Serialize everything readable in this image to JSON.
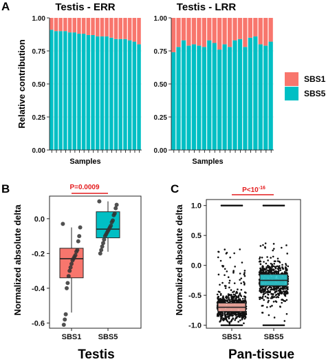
{
  "colors": {
    "sbs1": "#F8766D",
    "sbs5": "#00BFC4",
    "sig": "#E41A1C",
    "pt_sbs1": "#F4A9A0",
    "pt_sbs5": "#2FC4CC"
  },
  "panel_a": {
    "letter": "A",
    "legend": [
      "SBS1",
      "SBS5"
    ],
    "ylabel": "Relative contribution",
    "y_ticks": [
      "0.00",
      "0.25",
      "0.50",
      "0.75",
      "1.00"
    ]
  },
  "panel_b": {
    "letter": "B",
    "label": "Testis"
  },
  "panel_c": {
    "letter": "C",
    "label": "Pan-tissue"
  },
  "chart_data": [
    {
      "type": "bar",
      "stacked": true,
      "title": "Testis - ERR",
      "xlabel": "Samples",
      "ylabel": "Relative contribution",
      "ylim": [
        0,
        1
      ],
      "series": [
        {
          "name": "SBS5",
          "values": [
            0.91,
            0.9,
            0.9,
            0.9,
            0.89,
            0.89,
            0.88,
            0.88,
            0.87,
            0.87,
            0.86,
            0.86,
            0.86,
            0.85,
            0.84,
            0.84,
            0.84,
            0.83,
            0.82,
            0.8
          ]
        },
        {
          "name": "SBS1",
          "values": [
            0.09,
            0.1,
            0.1,
            0.1,
            0.11,
            0.11,
            0.12,
            0.12,
            0.13,
            0.13,
            0.14,
            0.14,
            0.14,
            0.15,
            0.16,
            0.16,
            0.16,
            0.17,
            0.18,
            0.2
          ]
        }
      ]
    },
    {
      "type": "bar",
      "stacked": true,
      "title": "Testis - LRR",
      "xlabel": "Samples",
      "ylim": [
        0,
        1
      ],
      "series": [
        {
          "name": "SBS5",
          "values": [
            0.74,
            0.78,
            0.83,
            0.79,
            0.8,
            0.79,
            0.78,
            0.83,
            0.81,
            0.76,
            0.8,
            0.78,
            0.83,
            0.84,
            0.78,
            0.85,
            0.86,
            0.8,
            0.79,
            0.82
          ]
        },
        {
          "name": "SBS1",
          "values": [
            0.26,
            0.22,
            0.17,
            0.21,
            0.2,
            0.21,
            0.22,
            0.17,
            0.19,
            0.24,
            0.2,
            0.22,
            0.17,
            0.16,
            0.22,
            0.15,
            0.14,
            0.2,
            0.21,
            0.18
          ]
        }
      ]
    },
    {
      "type": "box",
      "title": "",
      "xlabel": "Testis",
      "ylabel": "Normalized absolute delta",
      "ylim": [
        -0.63,
        0.13
      ],
      "y_ticks": [
        0.0,
        -0.2,
        -0.4,
        -0.6
      ],
      "y_tick_labels": [
        "0.0",
        "-0.2",
        "-0.4",
        "-0.6"
      ],
      "categories": [
        "SBS1",
        "SBS5"
      ],
      "significance": "P=0.0009",
      "boxes": [
        {
          "name": "SBS1",
          "whisker_low": -0.54,
          "q1": -0.34,
          "median": -0.23,
          "q3": -0.17,
          "whisker_high": -0.05,
          "points": [
            -0.03,
            -0.05,
            -0.1,
            -0.13,
            -0.18,
            -0.19,
            -0.21,
            -0.22,
            -0.23,
            -0.24,
            -0.26,
            -0.28,
            -0.3,
            -0.33,
            -0.37,
            -0.4,
            -0.55,
            -0.58,
            -0.61
          ]
        },
        {
          "name": "SBS5",
          "whisker_low": -0.19,
          "q1": -0.11,
          "median": -0.06,
          "q3": 0.04,
          "whisker_high": 0.1,
          "points": [
            0.1,
            0.08,
            0.06,
            0.03,
            0.02,
            -0.01,
            -0.02,
            -0.04,
            -0.05,
            -0.06,
            -0.07,
            -0.08,
            -0.09,
            -0.1,
            -0.12,
            -0.14,
            -0.16,
            -0.18,
            -0.2
          ]
        }
      ]
    },
    {
      "type": "box",
      "title": "",
      "xlabel": "Pan-tissue",
      "ylabel": "Normalized absolute delta",
      "ylim": [
        -1.05,
        1.1
      ],
      "y_ticks": [
        1.0,
        0.5,
        0.0,
        -0.5,
        -1.0
      ],
      "y_tick_labels": [
        "1.0",
        "0.5",
        "0.0",
        "-0.5",
        "-1.0"
      ],
      "categories": [
        "SBS1",
        "SBS5"
      ],
      "significance_prefix": "P<10",
      "significance_exp": "-16",
      "boxes": [
        {
          "name": "SBS1",
          "q1": -0.77,
          "median": -0.7,
          "q3": -0.63,
          "point_range": [
            -1.0,
            0.3
          ]
        },
        {
          "name": "SBS5",
          "q1": -0.34,
          "median": -0.25,
          "q3": -0.15,
          "point_range": [
            -1.0,
            0.4
          ]
        }
      ]
    }
  ]
}
